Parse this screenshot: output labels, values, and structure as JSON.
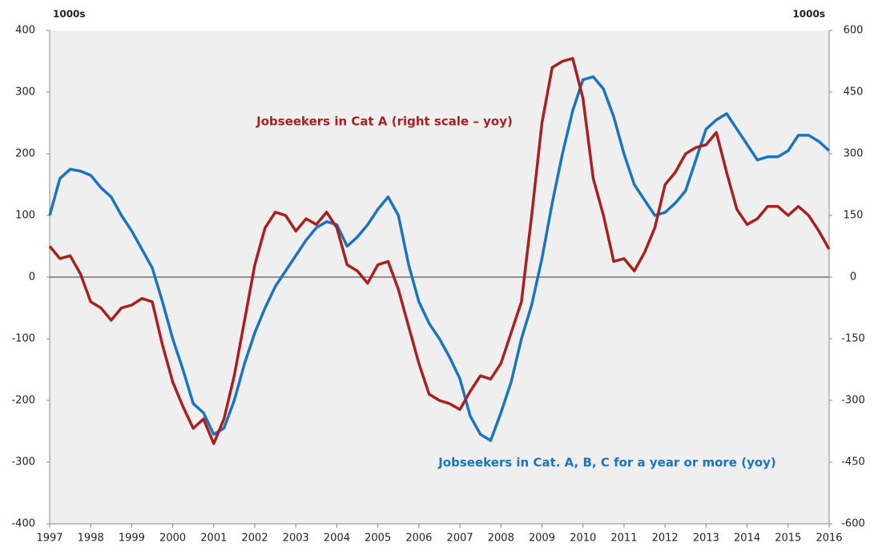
{
  "chart_data": {
    "type": "line",
    "x": [
      1997,
      1997.25,
      1997.5,
      1997.75,
      1998,
      1998.25,
      1998.5,
      1998.75,
      1999,
      1999.25,
      1999.5,
      1999.75,
      2000,
      2000.25,
      2000.5,
      2000.75,
      2001,
      2001.25,
      2001.5,
      2001.75,
      2002,
      2002.25,
      2002.5,
      2002.75,
      2003,
      2003.25,
      2003.5,
      2003.75,
      2004,
      2004.25,
      2004.5,
      2004.75,
      2005,
      2005.25,
      2005.5,
      2005.75,
      2006,
      2006.25,
      2006.5,
      2006.75,
      2007,
      2007.25,
      2007.5,
      2007.75,
      2008,
      2008.25,
      2008.5,
      2008.75,
      2009,
      2009.25,
      2009.5,
      2009.75,
      2010,
      2010.25,
      2010.5,
      2010.75,
      2011,
      2011.25,
      2011.5,
      2011.75,
      2012,
      2012.25,
      2012.5,
      2012.75,
      2013,
      2013.25,
      2013.5,
      2013.75,
      2014,
      2014.25,
      2014.5,
      2014.75,
      2015,
      2015.25,
      2015.5,
      2015.75,
      2016
    ],
    "series": [
      {
        "name": "Jobseekers in Cat. A, B, C for a year or more (yoy)",
        "color": "#1a74c2",
        "axis": "y",
        "values": [
          100,
          160,
          175,
          172,
          165,
          145,
          130,
          100,
          75,
          45,
          15,
          -40,
          -100,
          -150,
          -205,
          -220,
          -255,
          -245,
          -200,
          -140,
          -90,
          -50,
          -15,
          10,
          35,
          60,
          80,
          90,
          85,
          50,
          65,
          85,
          110,
          130,
          100,
          20,
          -40,
          -75,
          -100,
          -130,
          -165,
          -225,
          -255,
          -265,
          -220,
          -170,
          -100,
          -45,
          30,
          120,
          200,
          270,
          320,
          325,
          305,
          260,
          200,
          150,
          125,
          100,
          105,
          120,
          140,
          190,
          240,
          255,
          265,
          240,
          215,
          190,
          195,
          195,
          205,
          230,
          230,
          220,
          205
        ]
      },
      {
        "name": "Jobseekers in Cat A (right scale – yoy)",
        "color": "#a8201f",
        "axis": "y2",
        "values": [
          75,
          45,
          52,
          8,
          -60,
          -75,
          -105,
          -75,
          -68,
          -52,
          -60,
          -165,
          -255,
          -315,
          -368,
          -345,
          -405,
          -345,
          -240,
          -105,
          30,
          120,
          158,
          150,
          112,
          142,
          128,
          158,
          120,
          30,
          15,
          -15,
          30,
          38,
          -30,
          -120,
          -210,
          -285,
          -300,
          -308,
          -322,
          -278,
          -240,
          -248,
          -210,
          -135,
          -60,
          150,
          375,
          510,
          525,
          532,
          435,
          240,
          150,
          38,
          45,
          15,
          60,
          120,
          225,
          255,
          300,
          315,
          322,
          352,
          255,
          165,
          128,
          142,
          172,
          172,
          150,
          172,
          150,
          112,
          68
        ]
      }
    ],
    "xlim": [
      1997,
      2016
    ],
    "xticks": [
      1997,
      1998,
      1999,
      2000,
      2001,
      2002,
      2003,
      2004,
      2005,
      2006,
      2007,
      2008,
      2009,
      2010,
      2011,
      2012,
      2013,
      2014,
      2015,
      2016
    ],
    "ylim": [
      -400,
      400
    ],
    "yticks": [
      -400,
      -300,
      -200,
      -100,
      0,
      100,
      200,
      300,
      400
    ],
    "y2lim": [
      -600,
      600
    ],
    "y2ticks": [
      -600,
      -450,
      -300,
      -150,
      0,
      150,
      300,
      450,
      600
    ],
    "y_unit": "1000s",
    "y2_unit": "1000s"
  }
}
